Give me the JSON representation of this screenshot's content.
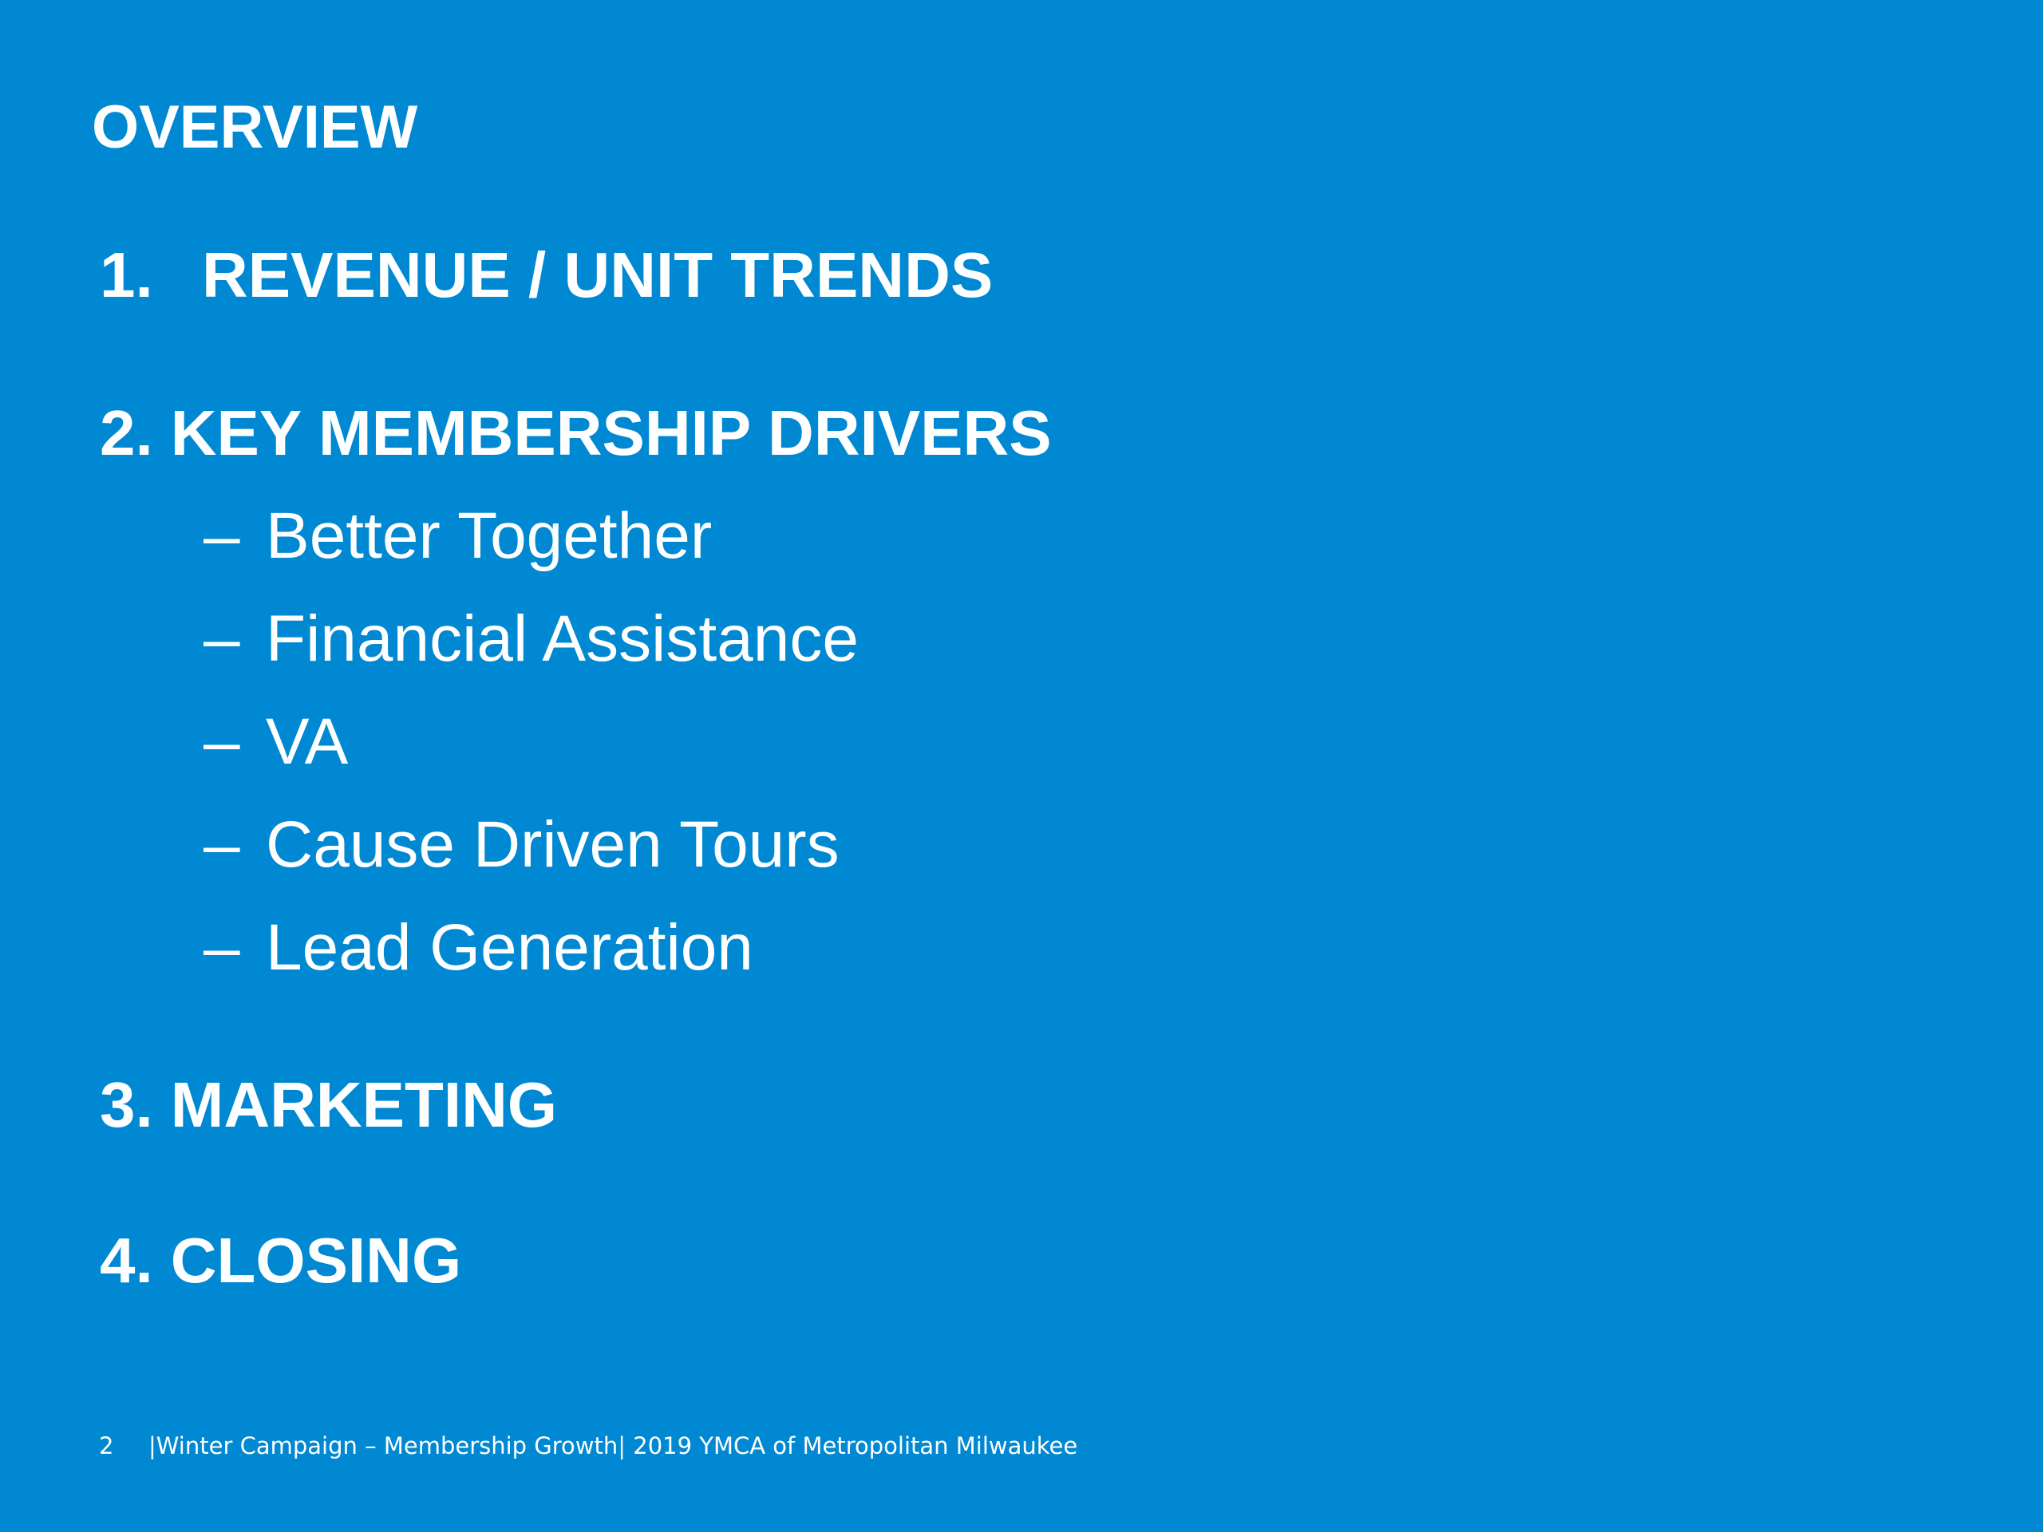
{
  "slide": {
    "title": "OVERVIEW",
    "sections": [
      {
        "number": "1.",
        "label": "REVENUE / UNIT TRENDS"
      },
      {
        "number": "2.",
        "label": "KEY MEMBERSHIP DRIVERS"
      },
      {
        "number": "3.",
        "label": "MARKETING"
      },
      {
        "number": "4.",
        "label": "CLOSING"
      }
    ],
    "drivers": [
      {
        "dash": "–",
        "label": "Better Together"
      },
      {
        "dash": "–",
        "label": "Financial Assistance"
      },
      {
        "dash": "–",
        "label": "VA"
      },
      {
        "dash": "–",
        "label": "Cause Driven Tours"
      },
      {
        "dash": "–",
        "label": "Lead Generation"
      }
    ]
  },
  "footer": {
    "page_number": "2",
    "text": "|Winter Campaign – Membership Growth| 2019 YMCA of Metropolitan Milwaukee"
  },
  "colors": {
    "background": "#0088d2",
    "text": "#ffffff"
  }
}
